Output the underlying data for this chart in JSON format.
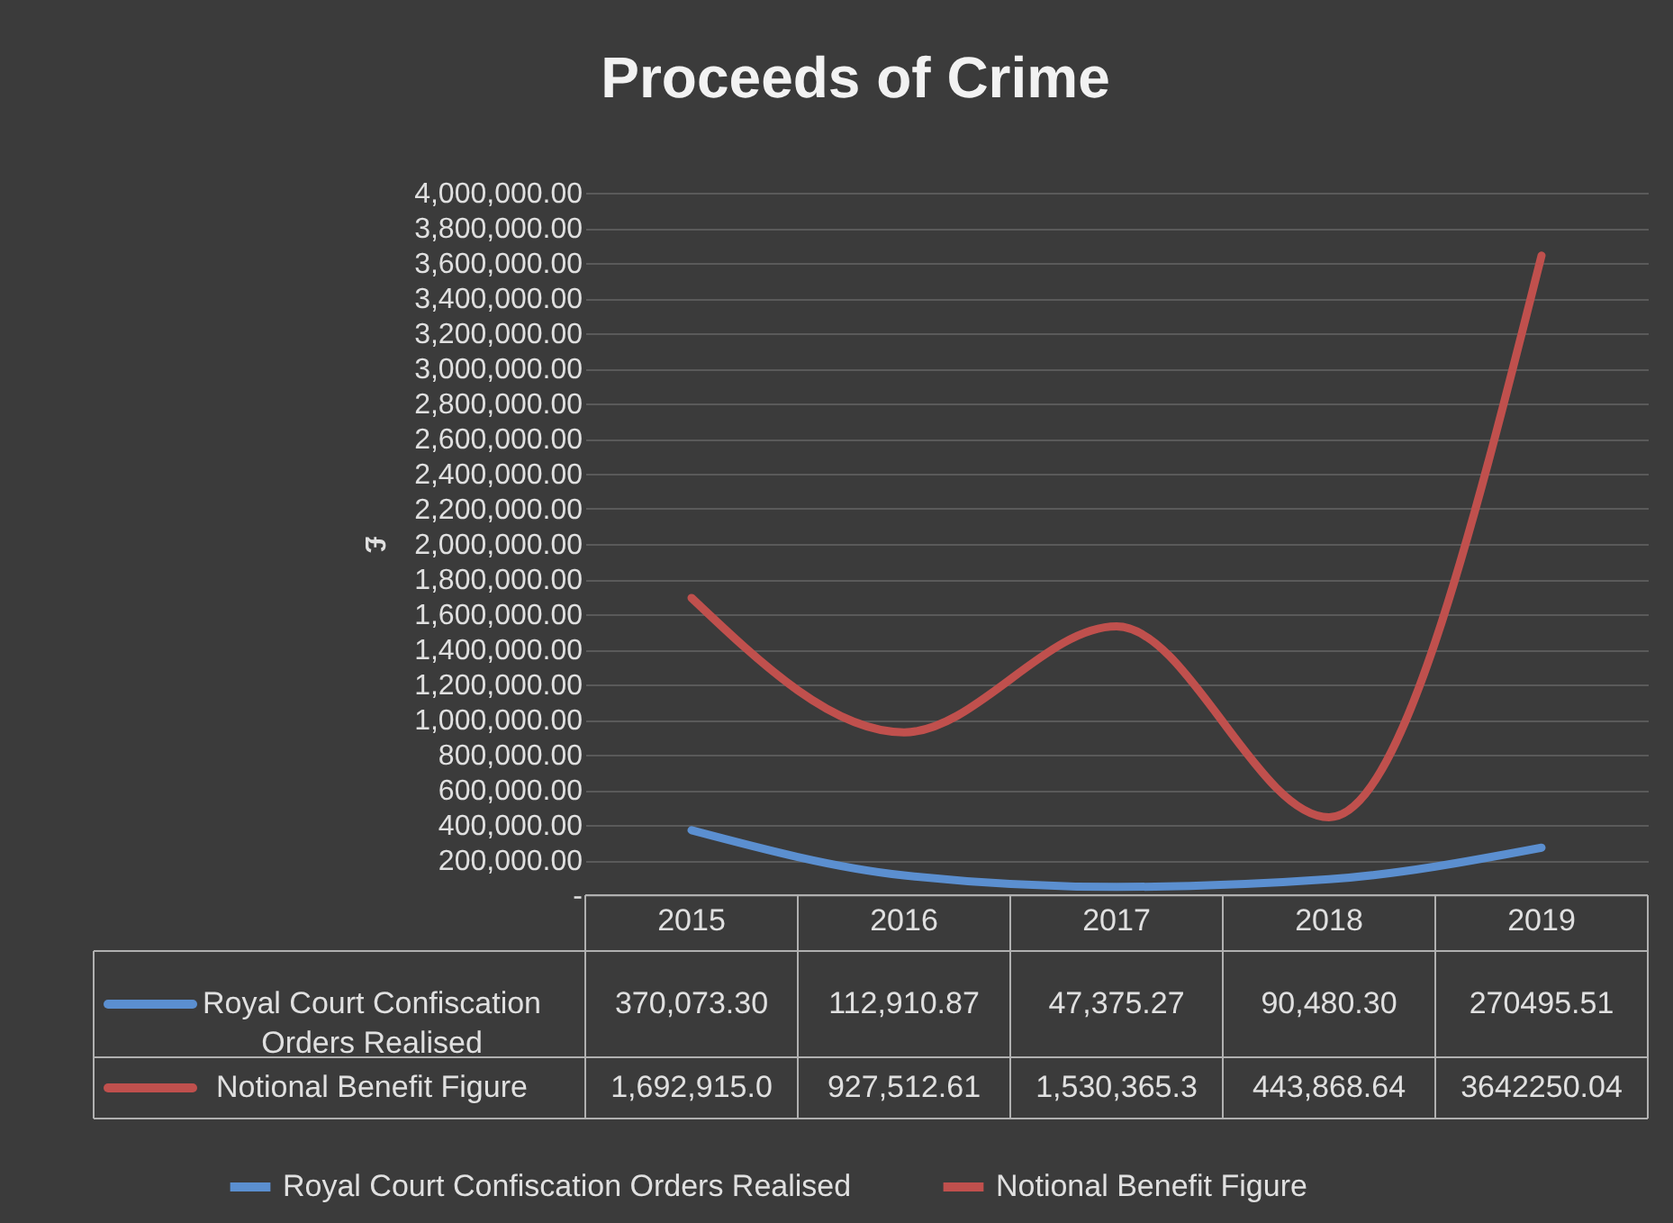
{
  "chart_data": {
    "type": "line",
    "title": "Proceeds of Crime",
    "ylabel": "£",
    "categories": [
      "2015",
      "2016",
      "2017",
      "2018",
      "2019"
    ],
    "series": [
      {
        "name": "Royal Court Confiscation Orders Realised",
        "color": "#5b8fd0",
        "values": [
          370073.3,
          112910.87,
          47375.27,
          90480.3,
          270495.51
        ],
        "value_labels": [
          "370,073.30",
          "112,910.87",
          "47,375.27",
          "90,480.30",
          "270495.51"
        ]
      },
      {
        "name": "Notional Benefit Figure",
        "color": "#c0504d",
        "values": [
          1692915.0,
          927512.61,
          1530365.3,
          443868.64,
          3642250.04
        ],
        "value_labels": [
          "1,692,915.0",
          "927,512.61",
          "1,530,365.3",
          "443,868.64",
          "3642250.04"
        ]
      }
    ],
    "ylim": [
      0,
      4000000
    ],
    "yticks": [
      {
        "value": 0,
        "label": "-"
      },
      {
        "value": 200000,
        "label": "200,000.00"
      },
      {
        "value": 400000,
        "label": "400,000.00"
      },
      {
        "value": 600000,
        "label": "600,000.00"
      },
      {
        "value": 800000,
        "label": "800,000.00"
      },
      {
        "value": 1000000,
        "label": "1,000,000.00"
      },
      {
        "value": 1200000,
        "label": "1,200,000.00"
      },
      {
        "value": 1400000,
        "label": "1,400,000.00"
      },
      {
        "value": 1600000,
        "label": "1,600,000.00"
      },
      {
        "value": 1800000,
        "label": "1,800,000.00"
      },
      {
        "value": 2000000,
        "label": "2,000,000.00"
      },
      {
        "value": 2200000,
        "label": "2,200,000.00"
      },
      {
        "value": 2400000,
        "label": "2,400,000.00"
      },
      {
        "value": 2600000,
        "label": "2,600,000.00"
      },
      {
        "value": 2800000,
        "label": "2,800,000.00"
      },
      {
        "value": 3000000,
        "label": "3,000,000.00"
      },
      {
        "value": 3200000,
        "label": "3,200,000.00"
      },
      {
        "value": 3400000,
        "label": "3,400,000.00"
      },
      {
        "value": 3600000,
        "label": "3,600,000.00"
      },
      {
        "value": 3800000,
        "label": "3,800,000.00"
      },
      {
        "value": 4000000,
        "label": "4,000,000.00"
      }
    ],
    "grid": "y",
    "legend": "bottom",
    "marker": "none",
    "line_style": "solid"
  }
}
